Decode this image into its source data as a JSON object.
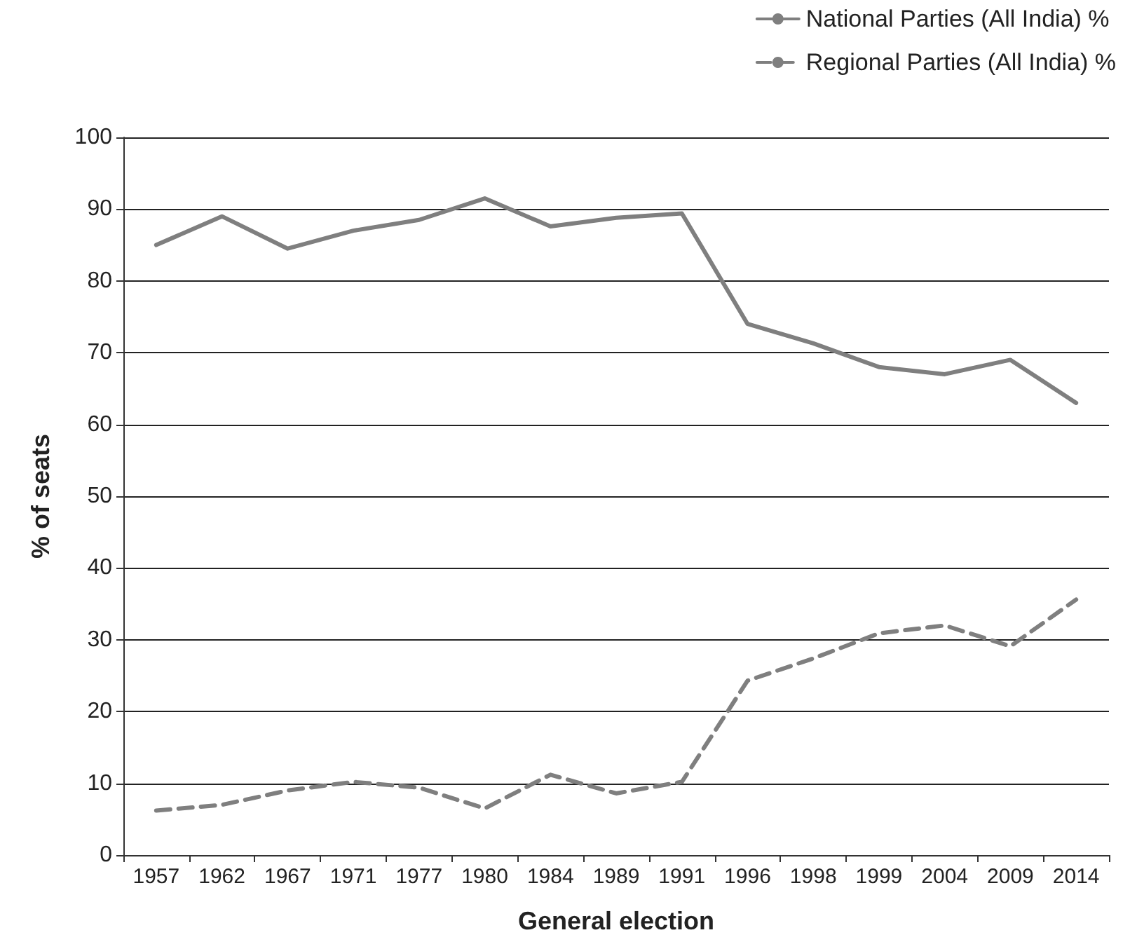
{
  "chart_data": {
    "type": "line",
    "xlabel": "General election",
    "ylabel": "% of seats",
    "categories": [
      "1957",
      "1962",
      "1967",
      "1971",
      "1977",
      "1980",
      "1984",
      "1989",
      "1991",
      "1996",
      "1998",
      "1999",
      "2004",
      "2009",
      "2014"
    ],
    "series": [
      {
        "name": "National Parties (All India) %",
        "color": "#7f7f7f",
        "line_style": "solid",
        "values": [
          85,
          89,
          84.5,
          87,
          88.5,
          91.5,
          87.6,
          88.8,
          89.4,
          74,
          71.3,
          68,
          67,
          69,
          63
        ]
      },
      {
        "name": "Regional Parties (All India) %",
        "color": "#7f7f7f",
        "line_style": "dashed",
        "values": [
          6.2,
          7,
          9,
          10.2,
          9.4,
          6.5,
          11.2,
          8.6,
          10.2,
          24.3,
          27.4,
          30.9,
          32,
          29.1,
          35.6
        ]
      }
    ],
    "ylim": [
      0,
      100
    ],
    "yticks": [
      0,
      10,
      20,
      30,
      40,
      50,
      60,
      70,
      80,
      90,
      100
    ],
    "grid": "y",
    "legend": "top right",
    "marker": "none"
  }
}
